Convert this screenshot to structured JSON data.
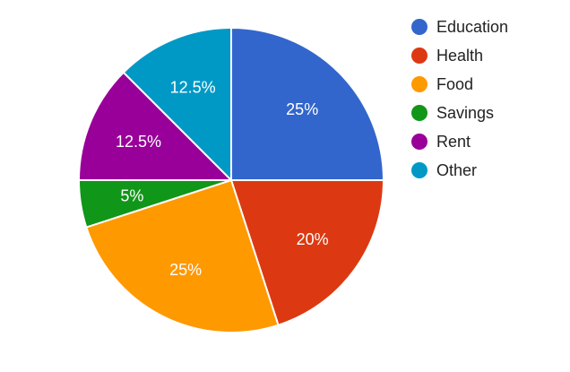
{
  "chart_data": {
    "type": "pie",
    "categories": [
      "Education",
      "Health",
      "Food",
      "Savings",
      "Rent",
      "Other"
    ],
    "values": [
      25,
      20,
      25,
      5,
      12.5,
      12.5
    ],
    "labels": [
      "25%",
      "20%",
      "25%",
      "5%",
      "12.5%",
      "12.5%"
    ],
    "colors": [
      "#3366cc",
      "#dc3912",
      "#ff9900",
      "#109618",
      "#990099",
      "#0099c6"
    ],
    "start_angle_deg": 0,
    "direction": "clockwise",
    "legend_position": "right",
    "title": ""
  }
}
